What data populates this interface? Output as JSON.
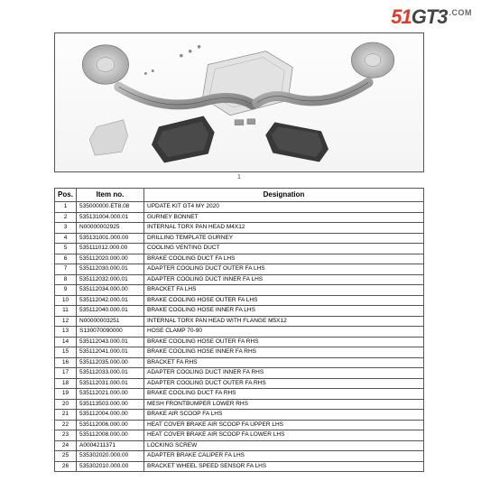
{
  "logo": {
    "part1": "51",
    "part2": "GT3",
    "suffix": ".COM"
  },
  "caption": "1",
  "table": {
    "headers": {
      "pos": "Pos.",
      "item": "Item no.",
      "desig": "Designation"
    },
    "rows": [
      {
        "pos": "1",
        "item": "535000000.ET8.08",
        "desig": "UPDATE KIT GT4 MY 2020"
      },
      {
        "pos": "2",
        "item": "535131004.000.01",
        "desig": "GURNEY BONNET"
      },
      {
        "pos": "3",
        "item": "N00000002925",
        "desig": "INTERNAL TORX PAN HEAD M4X12"
      },
      {
        "pos": "4",
        "item": "535131001.000.00",
        "desig": "DRILLING TEMPLATE GURNEY"
      },
      {
        "pos": "5",
        "item": "535111012.000.00",
        "desig": "COOLING VENTING DUCT"
      },
      {
        "pos": "6",
        "item": "535112020.000.00",
        "desig": "BRAKE COOLING DUCT FA LHS"
      },
      {
        "pos": "7",
        "item": "535112030.000.01",
        "desig": "ADAPTER COOLING DUCT OUTER FA LHS"
      },
      {
        "pos": "8",
        "item": "535112032.000.01",
        "desig": "ADAPTER COOLING DUCT INNER FA LHS"
      },
      {
        "pos": "9",
        "item": "535112034.000.00",
        "desig": "BRACKET FA LHS"
      },
      {
        "pos": "10",
        "item": "535112042.000.01",
        "desig": "BRAKE COOLING HOSE OUTER FA LHS"
      },
      {
        "pos": "11",
        "item": "535112040.000.01",
        "desig": "BRAKE COOLING HOSE INNER FA LHS"
      },
      {
        "pos": "12",
        "item": "N00000003251",
        "desig": "INTERNAL TORX PAN HEAD WITH FLANGE M5X12"
      },
      {
        "pos": "13",
        "item": "S130070090000",
        "desig": "HOSE CLAMP 70-90"
      },
      {
        "pos": "14",
        "item": "535112043.000.01",
        "desig": "BRAKE COOLING HOSE OUTER FA RHS"
      },
      {
        "pos": "15",
        "item": "535112041.000.01",
        "desig": "BRAKE COOLING HOSE INNER FA RHS"
      },
      {
        "pos": "16",
        "item": "535112035.000.00",
        "desig": "BRACKET FA RHS"
      },
      {
        "pos": "17",
        "item": "535112033.000.01",
        "desig": "ADAPTER COOLING DUCT INNER FA RHS"
      },
      {
        "pos": "18",
        "item": "535112031.000.01",
        "desig": "ADAPTER COOLING DUCT OUTER FA RHS"
      },
      {
        "pos": "19",
        "item": "535112021.000.00",
        "desig": "BRAKE COOLING DUCT FA RHS"
      },
      {
        "pos": "20",
        "item": "535113503.000.00",
        "desig": "MESH FRONTBUMPER LOWER RHS"
      },
      {
        "pos": "21",
        "item": "535112004.000.00",
        "desig": "BRAKE AIR SCOOP FA LHS"
      },
      {
        "pos": "22",
        "item": "535112006.000.00",
        "desig": "HEAT COVER BRAKE AIR SCOOP FA UPPER LHS"
      },
      {
        "pos": "23",
        "item": "535112008.000.00",
        "desig": "HEAT COVER BRAKE AIR SCOOP FA LOWER LHS"
      },
      {
        "pos": "24",
        "item": "A0004211371",
        "desig": "LOCKING SCREW"
      },
      {
        "pos": "25",
        "item": "535302020.000.00",
        "desig": "ADAPTER BRAKE CALIPER FA LHS"
      },
      {
        "pos": "26",
        "item": "535302010.000.00",
        "desig": "BRACKET WHEEL SPEED SENSOR FA LHS"
      }
    ]
  }
}
